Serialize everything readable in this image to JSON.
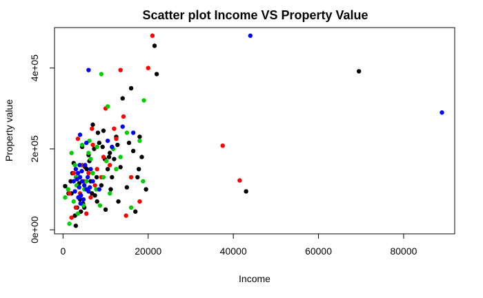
{
  "chart_data": {
    "type": "scatter",
    "title": "Scatter plot Income  VS Property Value",
    "xlabel": "Income",
    "ylabel": "Property value",
    "xlim": [
      -2000,
      92000
    ],
    "ylim": [
      -10000,
      500000
    ],
    "x_ticks": [
      0,
      20000,
      40000,
      60000,
      80000
    ],
    "x_tick_labels": [
      "0",
      "20000",
      "40000",
      "60000",
      "80000"
    ],
    "y_ticks": [
      0,
      200000,
      400000
    ],
    "y_tick_labels": [
      "0e+00",
      "2e+05",
      "4e+05"
    ],
    "grid": false,
    "legend": "none",
    "colors": {
      "black": "#000000",
      "red": "#ff0000",
      "green": "#00cd00",
      "blue": "#0000ff"
    },
    "series": [
      {
        "color_key": "black",
        "points": [
          [
            21500,
            455000
          ],
          [
            22000,
            385000
          ],
          [
            69500,
            392000
          ],
          [
            43000,
            95000
          ],
          [
            14000,
            325000
          ],
          [
            16000,
            350000
          ],
          [
            7000,
            260000
          ],
          [
            9500,
            245000
          ],
          [
            19500,
            100000
          ],
          [
            17000,
            45000
          ],
          [
            13000,
            70000
          ],
          [
            10000,
            50000
          ],
          [
            500,
            108000
          ],
          [
            2500,
            165000
          ],
          [
            3000,
            10000
          ],
          [
            5000,
            55000
          ],
          [
            8000,
            70000
          ],
          [
            11000,
            190000
          ],
          [
            12000,
            175000
          ],
          [
            18000,
            230000
          ],
          [
            16500,
            195000
          ],
          [
            4500,
            205000
          ],
          [
            6000,
            185000
          ],
          [
            3500,
            140000
          ],
          [
            6500,
            120000
          ],
          [
            9000,
            110000
          ],
          [
            7500,
            85000
          ],
          [
            5500,
            100000
          ],
          [
            2000,
            90000
          ],
          [
            4000,
            75000
          ],
          [
            8500,
            215000
          ],
          [
            10500,
            150000
          ],
          [
            11500,
            130000
          ],
          [
            2800,
            35000
          ],
          [
            4200,
            45000
          ],
          [
            5200,
            155000
          ],
          [
            9800,
            175000
          ],
          [
            12500,
            230000
          ],
          [
            18500,
            180000
          ],
          [
            17500,
            130000
          ],
          [
            15000,
            105000
          ],
          [
            3300,
            55000
          ],
          [
            6800,
            90000
          ],
          [
            7900,
            130000
          ],
          [
            1300,
            90000
          ],
          [
            10800,
            180000
          ],
          [
            13500,
            155000
          ],
          [
            8200,
            240000
          ],
          [
            6200,
            170000
          ],
          [
            3800,
            115000
          ],
          [
            2200,
            140000
          ],
          [
            9300,
            205000
          ],
          [
            15500,
            215000
          ],
          [
            17800,
            150000
          ],
          [
            4700,
            65000
          ],
          [
            5600,
            150000
          ],
          [
            11200,
            100000
          ],
          [
            12800,
            210000
          ],
          [
            1800,
            120000
          ],
          [
            7300,
            200000
          ]
        ]
      },
      {
        "color_key": "red",
        "points": [
          [
            21000,
            480000
          ],
          [
            20000,
            400000
          ],
          [
            13500,
            395000
          ],
          [
            14200,
            280000
          ],
          [
            10000,
            300000
          ],
          [
            37500,
            208000
          ],
          [
            41500,
            122000
          ],
          [
            14800,
            35000
          ],
          [
            18000,
            70000
          ],
          [
            16000,
            130000
          ],
          [
            8000,
            150000
          ],
          [
            12000,
            250000
          ],
          [
            6800,
            250000
          ],
          [
            2000,
            30000
          ],
          [
            3000,
            55000
          ],
          [
            4000,
            90000
          ],
          [
            5000,
            120000
          ],
          [
            6000,
            140000
          ],
          [
            7500,
            110000
          ],
          [
            9000,
            130000
          ],
          [
            3500,
            225000
          ],
          [
            11000,
            160000
          ],
          [
            1500,
            90000
          ],
          [
            5500,
            40000
          ],
          [
            9500,
            180000
          ],
          [
            6500,
            80000
          ],
          [
            12500,
            225000
          ],
          [
            2500,
            140000
          ],
          [
            4500,
            160000
          ],
          [
            7000,
            210000
          ]
        ]
      },
      {
        "color_key": "green",
        "points": [
          [
            9000,
            385000
          ],
          [
            19000,
            320000
          ],
          [
            10500,
            305000
          ],
          [
            18000,
            220000
          ],
          [
            16000,
            55000
          ],
          [
            1500,
            15000
          ],
          [
            500,
            80000
          ],
          [
            2000,
            190000
          ],
          [
            13500,
            180000
          ],
          [
            15000,
            240000
          ],
          [
            11000,
            90000
          ],
          [
            8000,
            205000
          ],
          [
            6000,
            190000
          ],
          [
            4000,
            160000
          ],
          [
            3000,
            130000
          ],
          [
            5000,
            100000
          ],
          [
            7000,
            140000
          ],
          [
            2500,
            70000
          ],
          [
            3500,
            40000
          ],
          [
            4500,
            210000
          ],
          [
            6500,
            175000
          ],
          [
            9500,
            130000
          ],
          [
            12500,
            150000
          ],
          [
            5500,
            120000
          ],
          [
            7800,
            100000
          ],
          [
            18800,
            120000
          ],
          [
            1200,
            100000
          ],
          [
            10200,
            170000
          ],
          [
            8700,
            60000
          ],
          [
            2800,
            160000
          ],
          [
            4800,
            60000
          ],
          [
            6200,
            220000
          ],
          [
            3200,
            110000
          ],
          [
            11800,
            200000
          ]
        ]
      },
      {
        "color_key": "blue",
        "points": [
          [
            44000,
            480000
          ],
          [
            89000,
            290000
          ],
          [
            6000,
            395000
          ],
          [
            14000,
            255000
          ],
          [
            16500,
            240000
          ],
          [
            4000,
            235000
          ],
          [
            5500,
            215000
          ],
          [
            10500,
            220000
          ],
          [
            11500,
            205000
          ],
          [
            3000,
            150000
          ],
          [
            3500,
            140000
          ],
          [
            4000,
            130000
          ],
          [
            4500,
            120000
          ],
          [
            5000,
            110000
          ],
          [
            5500,
            100000
          ],
          [
            6000,
            95000
          ],
          [
            3800,
            105000
          ],
          [
            4200,
            85000
          ],
          [
            4800,
            75000
          ],
          [
            3300,
            125000
          ],
          [
            5200,
            160000
          ],
          [
            6500,
            150000
          ],
          [
            2800,
            95000
          ],
          [
            4400,
            145000
          ],
          [
            3600,
            80000
          ],
          [
            5800,
            130000
          ],
          [
            7000,
            120000
          ],
          [
            8500,
            100000
          ],
          [
            2500,
            120000
          ],
          [
            4100,
            65000
          ],
          [
            3900,
            160000
          ],
          [
            6300,
            105000
          ]
        ]
      }
    ]
  }
}
